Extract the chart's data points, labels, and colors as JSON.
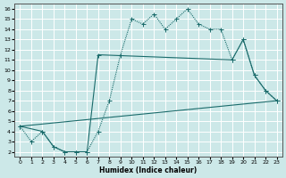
{
  "xlabel": "Humidex (Indice chaleur)",
  "xlim": [
    -0.5,
    23.5
  ],
  "ylim": [
    1.5,
    16.5
  ],
  "xticks": [
    0,
    1,
    2,
    3,
    4,
    5,
    6,
    7,
    8,
    9,
    10,
    11,
    12,
    13,
    14,
    15,
    16,
    17,
    18,
    19,
    20,
    21,
    22,
    23
  ],
  "yticks": [
    2,
    3,
    4,
    5,
    6,
    7,
    8,
    9,
    10,
    11,
    12,
    13,
    14,
    15,
    16
  ],
  "bg_color": "#cce8e8",
  "grid_color": "#ffffff",
  "line_color": "#1a6b6b",
  "series1_x": [
    0,
    1,
    2,
    3,
    4,
    5,
    6,
    7,
    8,
    9,
    10,
    11,
    12,
    13,
    14,
    15,
    16,
    17,
    18,
    19,
    20,
    21,
    22,
    23
  ],
  "series1_y": [
    4.5,
    3.0,
    4.0,
    2.5,
    2.0,
    2.0,
    2.0,
    4.0,
    7.0,
    11.5,
    15.0,
    14.5,
    15.5,
    14.0,
    15.0,
    16.0,
    14.5,
    14.0,
    14.0,
    11.0,
    13.0,
    9.5,
    8.0,
    7.0
  ],
  "series2_x": [
    0,
    2,
    3,
    4,
    5,
    6,
    7,
    19,
    20,
    21,
    22,
    23
  ],
  "series2_y": [
    4.5,
    4.0,
    2.5,
    2.0,
    2.0,
    2.0,
    11.5,
    11.0,
    13.0,
    9.5,
    8.0,
    7.0
  ],
  "series3_x": [
    0,
    23
  ],
  "series3_y": [
    4.5,
    7.0
  ]
}
